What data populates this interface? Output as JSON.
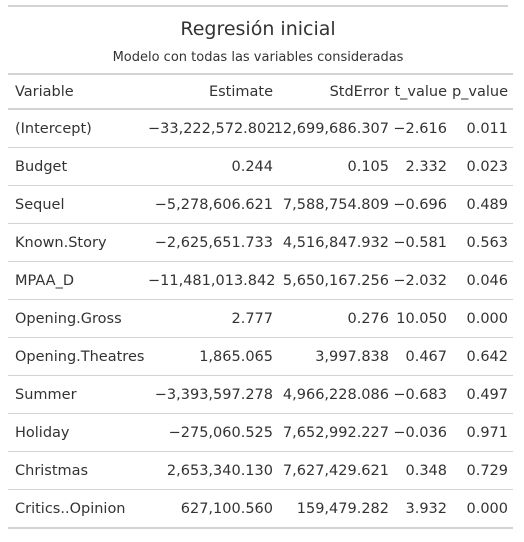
{
  "title": "Regresión inicial",
  "subtitle": "Modelo con todas las variables consideradas",
  "columns": [
    "Variable",
    "Estimate",
    "StdError",
    "t_value",
    "p_value"
  ],
  "rows": [
    [
      "(Intercept)",
      "−33,222,572.802",
      "12,699,686.307",
      "−2.616",
      "0.011"
    ],
    [
      "Budget",
      "0.244",
      "0.105",
      "2.332",
      "0.023"
    ],
    [
      "Sequel",
      "−5,278,606.621",
      "7,588,754.809",
      "−0.696",
      "0.489"
    ],
    [
      "Known.Story",
      "−2,625,651.733",
      "4,516,847.932",
      "−0.581",
      "0.563"
    ],
    [
      "MPAA_D",
      "−11,481,013.842",
      "5,650,167.256",
      "−2.032",
      "0.046"
    ],
    [
      "Opening.Gross",
      "2.777",
      "0.276",
      "10.050",
      "0.000"
    ],
    [
      "Opening.Theatres",
      "1,865.065",
      "3,997.838",
      "0.467",
      "0.642"
    ],
    [
      "Summer",
      "−3,393,597.278",
      "4,966,228.086",
      "−0.683",
      "0.497"
    ],
    [
      "Holiday",
      "−275,060.525",
      "7,652,992.227",
      "−0.036",
      "0.971"
    ],
    [
      "Christmas",
      "2,653,340.130",
      "7,627,429.621",
      "0.348",
      "0.729"
    ],
    [
      "Critics..Opinion",
      "627,100.560",
      "159,479.282",
      "3.932",
      "0.000"
    ]
  ]
}
